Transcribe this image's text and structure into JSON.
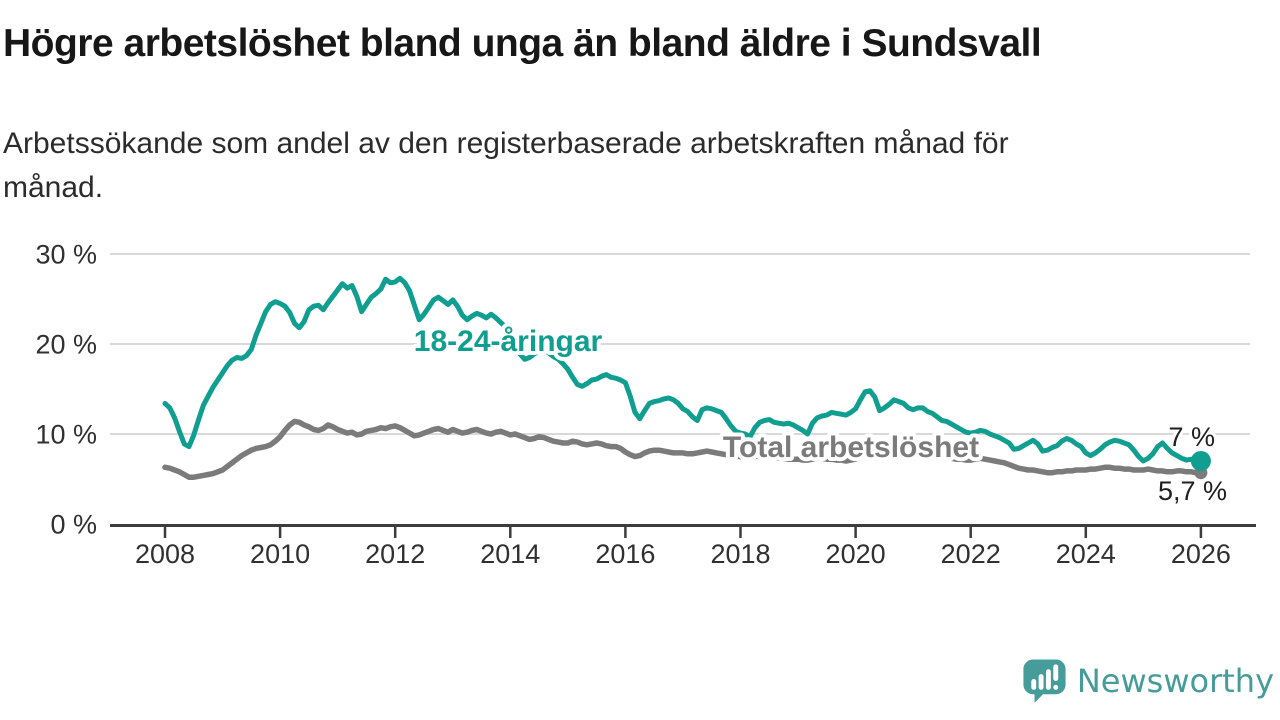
{
  "title": "Högre arbetslöshet bland unga än bland äldre i Sundsvall",
  "subtitle": "Arbetssökande som andel av den registerbaserade arbetskraften månad för\nmånad.",
  "chart_data": {
    "type": "line",
    "title": "Högre arbetslöshet bland unga än bland äldre i Sundsvall",
    "subtitle": "Arbetssökande som andel av den registerbaserade arbetskraften månad för månad.",
    "unit": "%",
    "ylim": [
      0,
      30
    ],
    "grid": "horizontal",
    "legend_position": "inline-labels",
    "x_axis": {
      "start": 2008,
      "ticks": [
        {
          "value": 2008,
          "label": "2008"
        },
        {
          "value": 2010,
          "label": "2010"
        },
        {
          "value": 2012,
          "label": "2012"
        },
        {
          "value": 2014,
          "label": "2014"
        },
        {
          "value": 2016,
          "label": "2016"
        },
        {
          "value": 2018,
          "label": "2018"
        },
        {
          "value": 2020,
          "label": "2020"
        },
        {
          "value": 2022,
          "label": "2022"
        },
        {
          "value": 2024,
          "label": "2024"
        },
        {
          "value": 2026,
          "label": "2026"
        }
      ]
    },
    "y_axis": {
      "ticks": [
        {
          "value": 0,
          "label": "0 %"
        },
        {
          "value": 10,
          "label": "10 %"
        },
        {
          "value": 20,
          "label": "20 %"
        },
        {
          "value": 30,
          "label": "30 %"
        }
      ]
    },
    "series": [
      {
        "name": "18-24-åringar",
        "color": "#0f9e90",
        "end_label": "7 %",
        "end_value": 7,
        "start_year": 2008,
        "interval_months": 1,
        "values": [
          13.4,
          12.9,
          11.8,
          10.3,
          8.9,
          8.6,
          9.9,
          11.6,
          13.2,
          14.2,
          15.2,
          16.0,
          16.8,
          17.6,
          18.2,
          18.5,
          18.4,
          18.7,
          19.4,
          21.0,
          22.3,
          23.6,
          24.4,
          24.7,
          24.5,
          24.2,
          23.5,
          22.3,
          21.8,
          22.5,
          23.8,
          24.2,
          24.3,
          23.8,
          24.6,
          25.3,
          26.0,
          26.7,
          26.2,
          26.5,
          25.3,
          23.6,
          24.4,
          25.2,
          25.6,
          26.1,
          27.2,
          26.8,
          26.9,
          27.3,
          26.8,
          25.9,
          24.3,
          22.7,
          23.3,
          24.1,
          24.9,
          25.2,
          24.8,
          24.4,
          24.9,
          24.2,
          23.2,
          22.7,
          23.1,
          23.4,
          23.2,
          22.9,
          23.3,
          22.9,
          22.4,
          21.9,
          20.8,
          19.8,
          18.9,
          18.3,
          18.5,
          18.9,
          19.2,
          19.3,
          19.0,
          18.6,
          18.3,
          17.8,
          17.2,
          16.3,
          15.5,
          15.3,
          15.6,
          16.0,
          16.1,
          16.4,
          16.6,
          16.3,
          16.2,
          16.0,
          15.7,
          14.2,
          12.4,
          11.7,
          12.6,
          13.4,
          13.6,
          13.7,
          13.9,
          14.0,
          13.8,
          13.4,
          12.8,
          12.5,
          11.9,
          11.5,
          12.7,
          12.9,
          12.8,
          12.6,
          12.4,
          11.7,
          10.9,
          10.3,
          10.1,
          10.0,
          9.7,
          10.7,
          11.3,
          11.5,
          11.6,
          11.3,
          11.2,
          11.1,
          11.2,
          11.0,
          10.7,
          10.4,
          10.0,
          11.2,
          11.8,
          12.0,
          12.1,
          12.4,
          12.3,
          12.2,
          12.1,
          12.4,
          12.8,
          13.8,
          14.7,
          14.8,
          14.1,
          12.6,
          12.9,
          13.3,
          13.8,
          13.6,
          13.4,
          12.9,
          12.7,
          12.9,
          12.9,
          12.5,
          12.3,
          11.9,
          11.5,
          11.4,
          11.1,
          10.8,
          10.5,
          10.2,
          10.1,
          10.2,
          10.4,
          10.3,
          10.0,
          9.8,
          9.6,
          9.3,
          9.0,
          8.3,
          8.4,
          8.7,
          9.0,
          9.3,
          8.9,
          8.1,
          8.2,
          8.5,
          8.7,
          9.2,
          9.5,
          9.3,
          8.9,
          8.6,
          7.9,
          7.6,
          7.9,
          8.3,
          8.8,
          9.1,
          9.3,
          9.2,
          9.0,
          8.8,
          8.2,
          7.5,
          7.0,
          7.3,
          7.8,
          8.6,
          9.0,
          8.4,
          7.9,
          7.6,
          7.3,
          7.1,
          7.2,
          7.0,
          7.0
        ]
      },
      {
        "name": "Total arbetslöshet",
        "color": "#7b7b7b",
        "end_label": "5,7 %",
        "end_value": 5.7,
        "start_year": 2008,
        "interval_months": 1,
        "values": [
          6.3,
          6.2,
          6.0,
          5.8,
          5.5,
          5.2,
          5.2,
          5.3,
          5.4,
          5.5,
          5.6,
          5.8,
          6.0,
          6.4,
          6.8,
          7.2,
          7.6,
          7.9,
          8.2,
          8.4,
          8.5,
          8.6,
          8.8,
          9.2,
          9.7,
          10.4,
          11.0,
          11.4,
          11.3,
          11.0,
          10.8,
          10.5,
          10.4,
          10.6,
          11.0,
          10.8,
          10.5,
          10.3,
          10.1,
          10.2,
          9.9,
          10.0,
          10.3,
          10.4,
          10.5,
          10.7,
          10.6,
          10.8,
          10.9,
          10.7,
          10.4,
          10.1,
          9.8,
          9.9,
          10.1,
          10.3,
          10.5,
          10.6,
          10.4,
          10.2,
          10.5,
          10.3,
          10.1,
          10.2,
          10.4,
          10.5,
          10.3,
          10.1,
          10.0,
          10.2,
          10.3,
          10.1,
          9.9,
          10.0,
          9.8,
          9.6,
          9.4,
          9.5,
          9.7,
          9.6,
          9.4,
          9.2,
          9.1,
          9.0,
          9.0,
          9.2,
          9.1,
          8.9,
          8.8,
          8.9,
          9.0,
          8.9,
          8.7,
          8.6,
          8.6,
          8.4,
          8.0,
          7.7,
          7.5,
          7.6,
          7.9,
          8.1,
          8.2,
          8.2,
          8.1,
          8.0,
          7.9,
          7.9,
          7.9,
          7.8,
          7.8,
          7.9,
          8.0,
          8.1,
          8.0,
          7.9,
          7.8,
          7.7,
          7.6,
          7.5,
          7.5,
          7.4,
          7.4,
          7.5,
          7.6,
          7.6,
          7.5,
          7.4,
          7.3,
          7.3,
          7.2,
          7.2,
          7.2,
          7.1,
          7.1,
          7.2,
          7.3,
          7.3,
          7.2,
          7.2,
          7.1,
          7.1,
          7.0,
          7.1,
          7.2,
          7.5,
          7.9,
          8.2,
          8.4,
          8.5,
          8.4,
          8.3,
          8.2,
          8.2,
          8.1,
          8.1,
          8.0,
          8.0,
          7.9,
          7.8,
          7.7,
          7.6,
          7.5,
          7.4,
          7.3,
          7.2,
          7.2,
          7.1,
          7.1,
          7.2,
          7.3,
          7.2,
          7.1,
          7.0,
          6.9,
          6.8,
          6.6,
          6.4,
          6.2,
          6.1,
          6.0,
          6.0,
          5.9,
          5.8,
          5.7,
          5.7,
          5.8,
          5.8,
          5.9,
          5.9,
          6.0,
          6.0,
          6.0,
          6.1,
          6.1,
          6.2,
          6.3,
          6.3,
          6.2,
          6.2,
          6.1,
          6.1,
          6.0,
          6.0,
          6.0,
          6.1,
          6.0,
          5.9,
          5.9,
          5.8,
          5.8,
          5.9,
          5.9,
          5.8,
          5.8,
          5.7,
          5.7
        ]
      }
    ]
  },
  "branding": {
    "logo_text": "Newsworthy",
    "logo_color": "#459c99",
    "logo_icon": "speech-bubble-bar-chart-exclamation"
  }
}
